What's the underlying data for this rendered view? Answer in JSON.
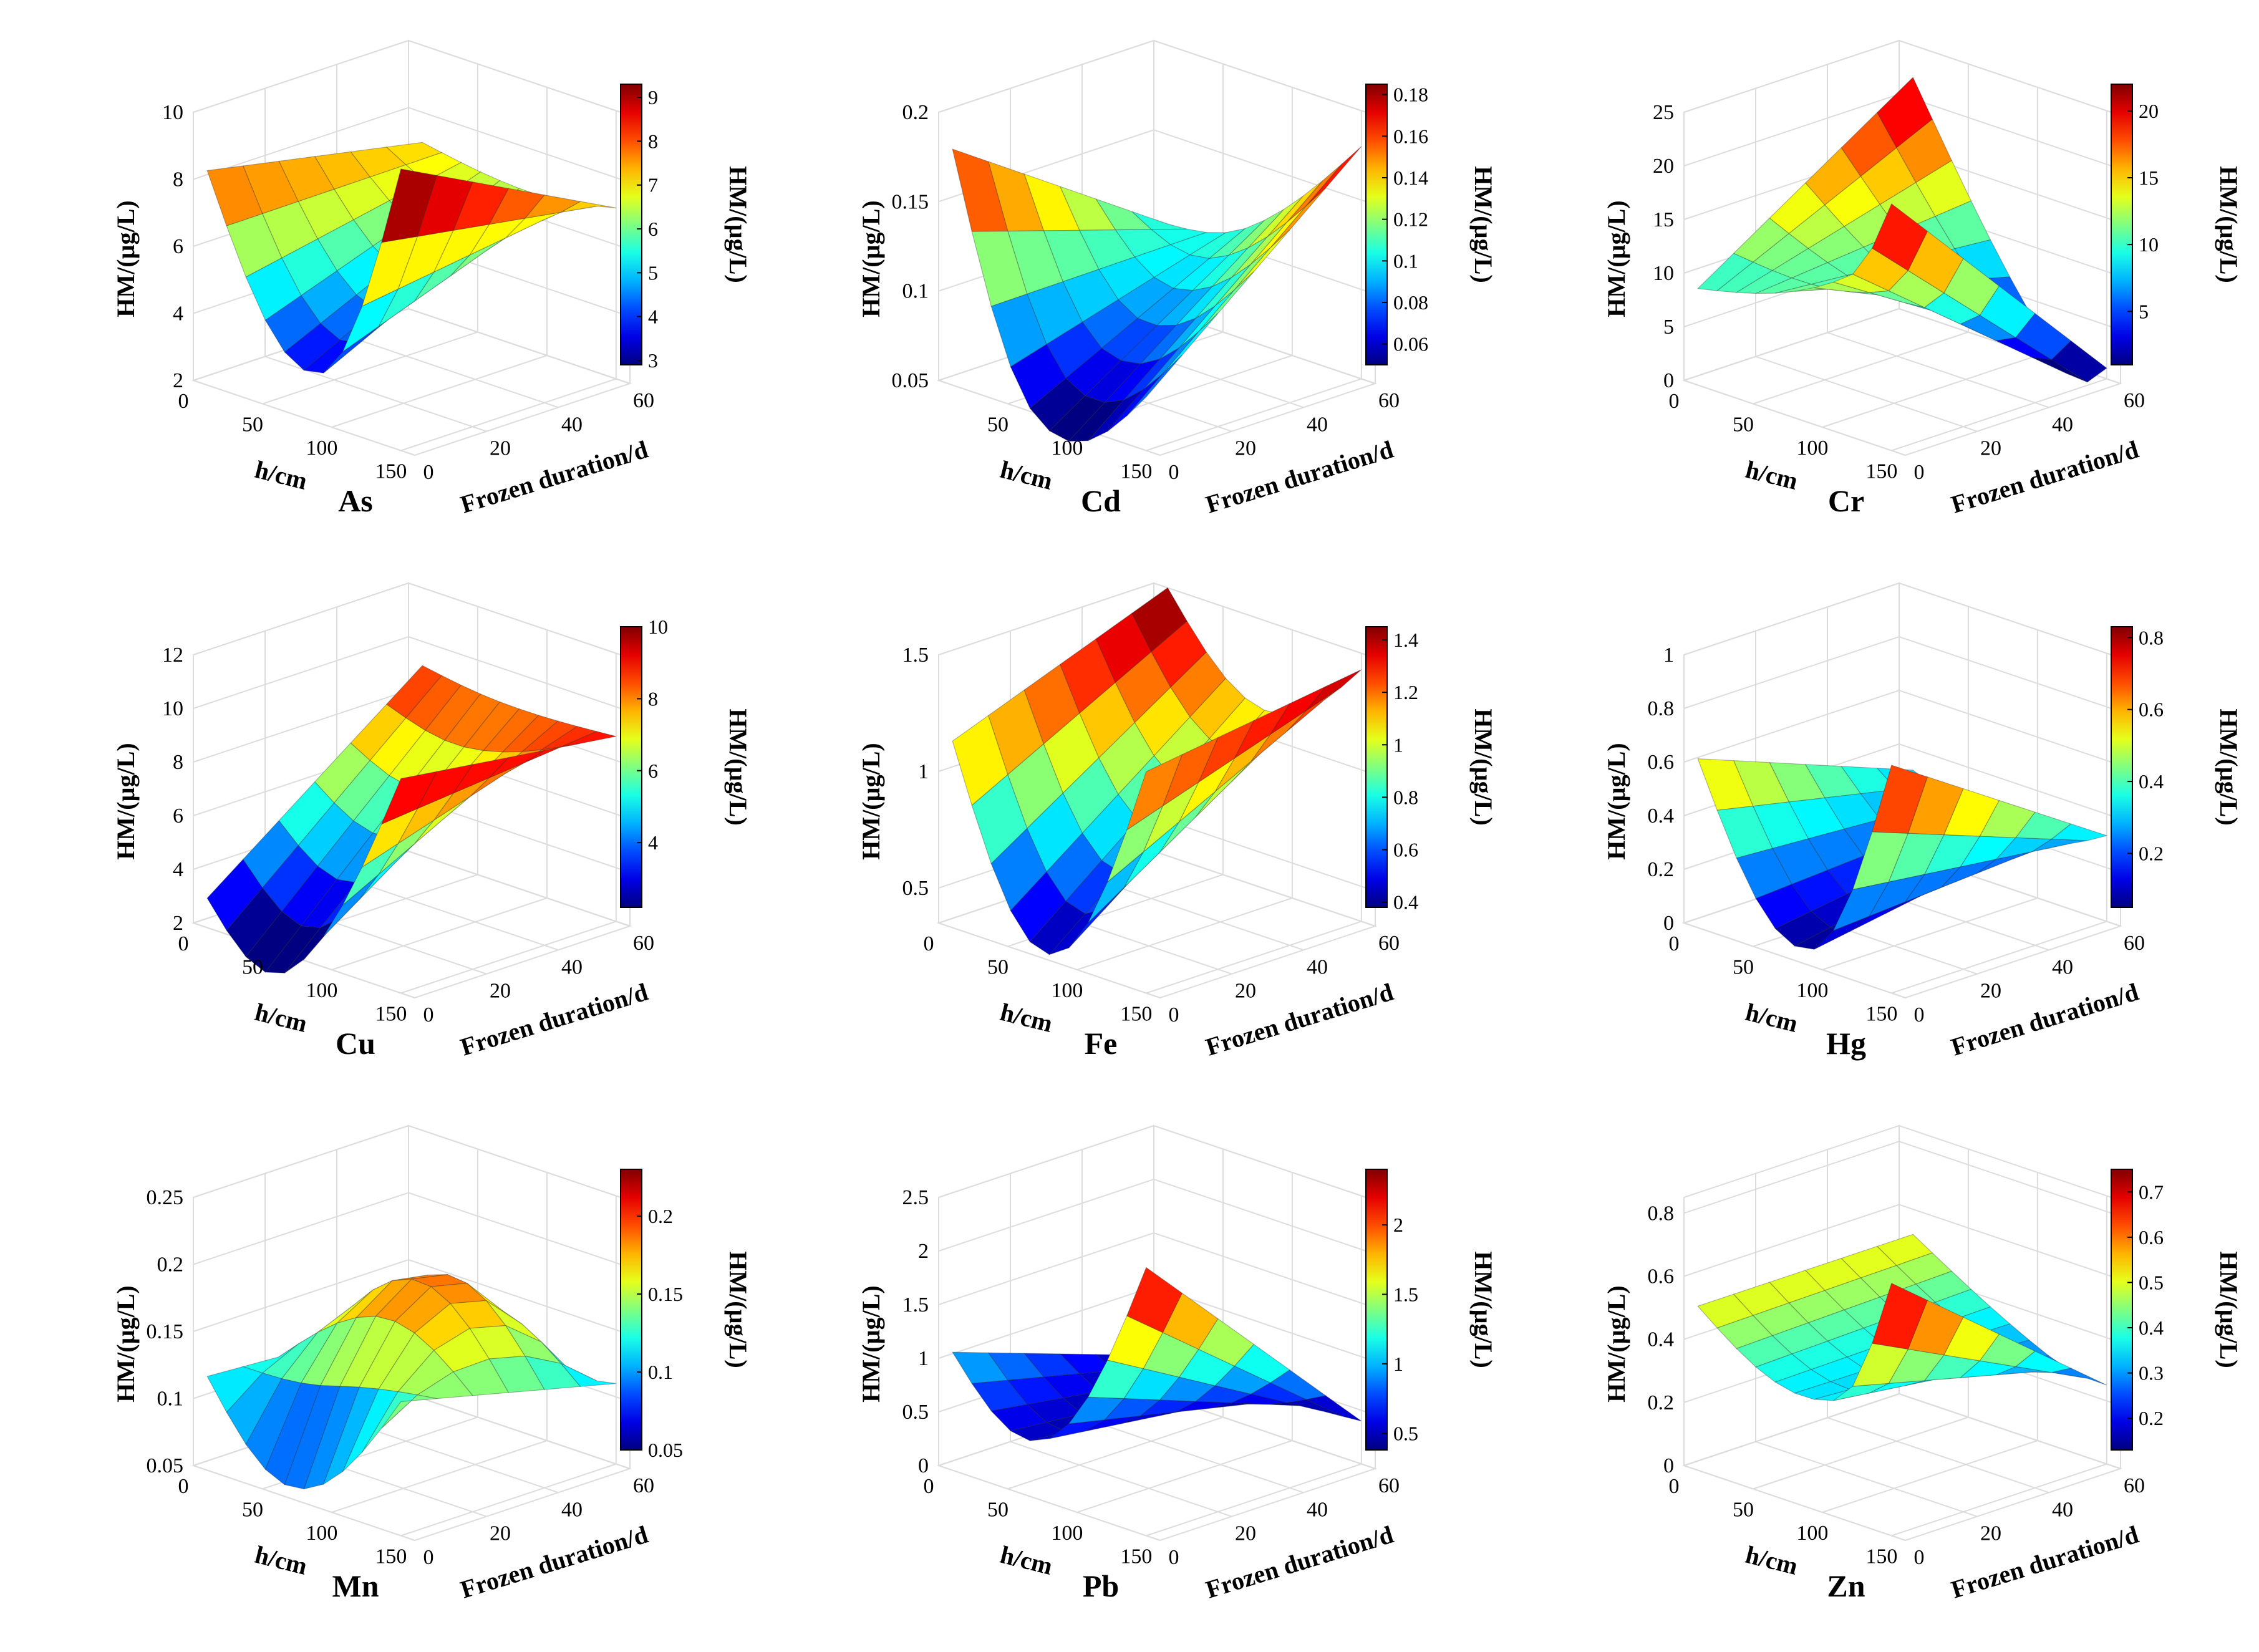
{
  "chart_data": [
    {
      "type": "surface",
      "title": "As",
      "xlabel": "h/cm",
      "ylabel": "Frozen duration/d",
      "zlabel": "HM/(µg/L)",
      "colorbar_label": "HM/(µg/L)",
      "xlim": [
        0,
        160
      ],
      "ylim": [
        0,
        60
      ],
      "zlim": [
        2,
        10
      ],
      "x_ticks": [
        "0",
        "50",
        "100",
        "150"
      ],
      "y_ticks": [
        "0",
        "20",
        "40",
        "60"
      ],
      "z_ticks": [
        "2",
        "4",
        "6",
        "8",
        "10"
      ],
      "clim": [
        2.9,
        9.3
      ],
      "colorbar_ticks": [
        "3",
        "4",
        "5",
        "6",
        "7",
        "8",
        "9"
      ],
      "surface_model": {
        "x_values": [
          10,
          150
        ],
        "y_values": [
          0,
          60
        ],
        "z_at_x_min": [
          8.4,
          7.1
        ],
        "z_at_x_max": [
          10.4,
          7.1
        ],
        "trough_depth": [
          6.1,
          0.4
        ],
        "trough_h": 90
      }
    },
    {
      "type": "surface",
      "title": "Cd",
      "xlabel": "h/cm",
      "ylabel": "Frozen duration/d",
      "zlabel": "HM/(µg/L)",
      "colorbar_label": "HM/(µg/L)",
      "xlim": [
        0,
        160
      ],
      "ylim": [
        0,
        60
      ],
      "zlim": [
        0.05,
        0.2
      ],
      "x_ticks": [
        "50",
        "100",
        "150"
      ],
      "y_ticks": [
        "0",
        "20",
        "40",
        "60"
      ],
      "z_ticks": [
        "0.05",
        "0.1",
        "0.15",
        "0.2"
      ],
      "clim": [
        0.05,
        0.185
      ],
      "colorbar_ticks": [
        "0.06",
        "0.08",
        "0.1",
        "0.12",
        "0.14",
        "0.16",
        "0.18"
      ],
      "surface_model": {
        "x_values": [
          10,
          150
        ],
        "y_values": [
          0,
          60
        ],
        "z_at_x_min": [
          0.182,
          0.1
        ],
        "z_at_x_max": [
          0.08,
          0.18
        ],
        "trough_depth": [
          0.09,
          0.02
        ],
        "trough_h": 70
      }
    },
    {
      "type": "surface",
      "title": "Cr",
      "xlabel": "h/cm",
      "ylabel": "Frozen duration/d",
      "zlabel": "HM/(µg/L)",
      "colorbar_label": "HM/(µg/L)",
      "xlim": [
        0,
        160
      ],
      "ylim": [
        0,
        60
      ],
      "zlim": [
        0,
        25
      ],
      "x_ticks": [
        "0",
        "50",
        "100",
        "150"
      ],
      "y_ticks": [
        "0",
        "20",
        "40",
        "60"
      ],
      "z_ticks": [
        "0",
        "5",
        "10",
        "15",
        "20",
        "25"
      ],
      "clim": [
        1,
        22
      ],
      "colorbar_ticks": [
        "5",
        "10",
        "15",
        "20"
      ],
      "surface_model": {
        "x_values": [
          10,
          150
        ],
        "y_values": [
          0,
          60
        ],
        "z_at_x_min": [
          9,
          22
        ],
        "z_at_x_max": [
          23,
          1
        ],
        "trough_depth": [
          5,
          6
        ],
        "trough_h": 120
      }
    },
    {
      "type": "surface",
      "title": "Cu",
      "xlabel": "h/cm",
      "ylabel": "Frozen duration/d",
      "zlabel": "HM/(µg/L)",
      "colorbar_label": "HM/(µg/L)",
      "xlim": [
        0,
        160
      ],
      "ylim": [
        0,
        60
      ],
      "zlim": [
        2,
        12
      ],
      "x_ticks": [
        "0",
        "50",
        "100",
        "150"
      ],
      "y_ticks": [
        "0",
        "20",
        "40",
        "60"
      ],
      "z_ticks": [
        "2",
        "4",
        "6",
        "8",
        "10",
        "12"
      ],
      "clim": [
        2.2,
        10
      ],
      "colorbar_ticks": [
        "4",
        "6",
        "8",
        "10"
      ],
      "surface_model": {
        "x_values": [
          10,
          150
        ],
        "y_values": [
          0,
          60
        ],
        "z_at_x_min": [
          3.1,
          9.1
        ],
        "z_at_x_max": [
          10,
          8.9
        ],
        "trough_depth": [
          4.6,
          0.3
        ],
        "trough_h": 70
      }
    },
    {
      "type": "surface",
      "title": "Fe",
      "xlabel": "h/cm",
      "ylabel": "Frozen duration/d",
      "zlabel": "HM/(µg/L)",
      "colorbar_label": "HM/(µg/L)",
      "xlim": [
        0,
        160
      ],
      "ylim": [
        0,
        60
      ],
      "zlim": [
        0.35,
        1.5
      ],
      "x_ticks": [
        "0",
        "50",
        "100",
        "150"
      ],
      "y_ticks": [
        "0",
        "20",
        "40",
        "60"
      ],
      "z_ticks": [
        "0.5",
        "1",
        "1.5"
      ],
      "clim": [
        0.38,
        1.45
      ],
      "colorbar_ticks": [
        "0.4",
        "0.6",
        "0.8",
        "1",
        "1.2",
        "1.4"
      ],
      "surface_model": {
        "x_values": [
          10,
          150
        ],
        "y_values": [
          0,
          60
        ],
        "z_at_x_min": [
          1.15,
          1.5
        ],
        "z_at_x_max": [
          1.3,
          1.43
        ],
        "trough_depth": [
          0.85,
          0.35
        ],
        "trough_h": 80
      }
    },
    {
      "type": "surface",
      "title": "Hg",
      "xlabel": "h/cm",
      "ylabel": "Frozen duration/d",
      "zlabel": "HM/(µg/L)",
      "colorbar_label": "HM/(µg/L)",
      "xlim": [
        0,
        160
      ],
      "ylim": [
        0,
        60
      ],
      "zlim": [
        0,
        1
      ],
      "x_ticks": [
        "0",
        "50",
        "100",
        "150"
      ],
      "y_ticks": [
        "0",
        "20",
        "40",
        "60"
      ],
      "z_ticks": [
        "0",
        "0.2",
        "0.4",
        "0.6",
        "0.8",
        "1"
      ],
      "clim": [
        0.05,
        0.83
      ],
      "colorbar_ticks": [
        "0.2",
        "0.4",
        "0.6",
        "0.8"
      ],
      "surface_model": {
        "x_values": [
          10,
          150
        ],
        "y_values": [
          0,
          60
        ],
        "z_at_x_min": [
          0.63,
          0.32
        ],
        "z_at_x_max": [
          0.85,
          0.32
        ],
        "trough_depth": [
          0.7,
          0.12
        ],
        "trough_h": 90
      }
    },
    {
      "type": "surface",
      "title": "Mn",
      "xlabel": "h/cm",
      "ylabel": "Frozen duration/d",
      "zlabel": "HM/(µg/L)",
      "colorbar_label": "HM/(µg/L)",
      "xlim": [
        0,
        160
      ],
      "ylim": [
        0,
        60
      ],
      "zlim": [
        0.05,
        0.25
      ],
      "x_ticks": [
        "0",
        "50",
        "100",
        "150"
      ],
      "y_ticks": [
        "0",
        "20",
        "40",
        "60"
      ],
      "z_ticks": [
        "0.05",
        "0.1",
        "0.15",
        "0.2",
        "0.25"
      ],
      "clim": [
        0.05,
        0.23
      ],
      "colorbar_ticks": [
        "0.05",
        "0.1",
        "0.15",
        "0.2"
      ],
      "surface_model": {
        "x_values": [
          10,
          150
        ],
        "y_values": [
          0,
          60
        ],
        "z_at_x_min": [
          0.12,
          0.11
        ],
        "z_at_x_max": [
          0.15,
          0.11
        ],
        "trough_depth": [
          0.075,
          0.01
        ],
        "trough_h": 75,
        "ridge_y": 30,
        "ridge_gain": 0.11
      }
    },
    {
      "type": "surface",
      "title": "Pb",
      "xlabel": "h/cm",
      "ylabel": "Frozen duration/d",
      "zlabel": "HM/(µg/L)",
      "colorbar_label": "HM/(µg/L)",
      "xlim": [
        0,
        160
      ],
      "ylim": [
        0,
        60
      ],
      "zlim": [
        0,
        2.5
      ],
      "x_ticks": [
        "0",
        "50",
        "100",
        "150"
      ],
      "y_ticks": [
        "0",
        "20",
        "40",
        "60"
      ],
      "z_ticks": [
        "0",
        "0.5",
        "1",
        "1.5",
        "2",
        "2.5"
      ],
      "clim": [
        0.38,
        2.4
      ],
      "colorbar_ticks": [
        "0.5",
        "1",
        "1.5",
        "2"
      ],
      "surface_model": {
        "x_values": [
          10,
          150
        ],
        "y_values": [
          0,
          60
        ],
        "z_at_x_min": [
          1.1,
          0.4
        ],
        "z_at_x_max": [
          2.5,
          0.4
        ],
        "trough_depth": [
          1.2,
          0.05
        ],
        "trough_h": 80
      }
    },
    {
      "type": "surface",
      "title": "Zn",
      "xlabel": "h/cm",
      "ylabel": "Frozen duration/d",
      "zlabel": "HM/(µg/L)",
      "colorbar_label": "HM/(µg/L)",
      "xlim": [
        0,
        160
      ],
      "ylim": [
        0,
        60
      ],
      "zlim": [
        0,
        0.85
      ],
      "x_ticks": [
        "0",
        "50",
        "100",
        "150"
      ],
      "y_ticks": [
        "0",
        "20",
        "40",
        "60"
      ],
      "z_ticks": [
        "0",
        "0.2",
        "0.4",
        "0.6",
        "0.8"
      ],
      "clim": [
        0.13,
        0.75
      ],
      "colorbar_ticks": [
        "0.2",
        "0.3",
        "0.4",
        "0.5",
        "0.6",
        "0.7"
      ],
      "surface_model": {
        "x_values": [
          10,
          150
        ],
        "y_values": [
          0,
          60
        ],
        "z_at_x_min": [
          0.52,
          0.52
        ],
        "z_at_x_max": [
          0.8,
          0.25
        ],
        "trough_depth": [
          0.35,
          0.05
        ],
        "trough_h": 110
      }
    }
  ]
}
